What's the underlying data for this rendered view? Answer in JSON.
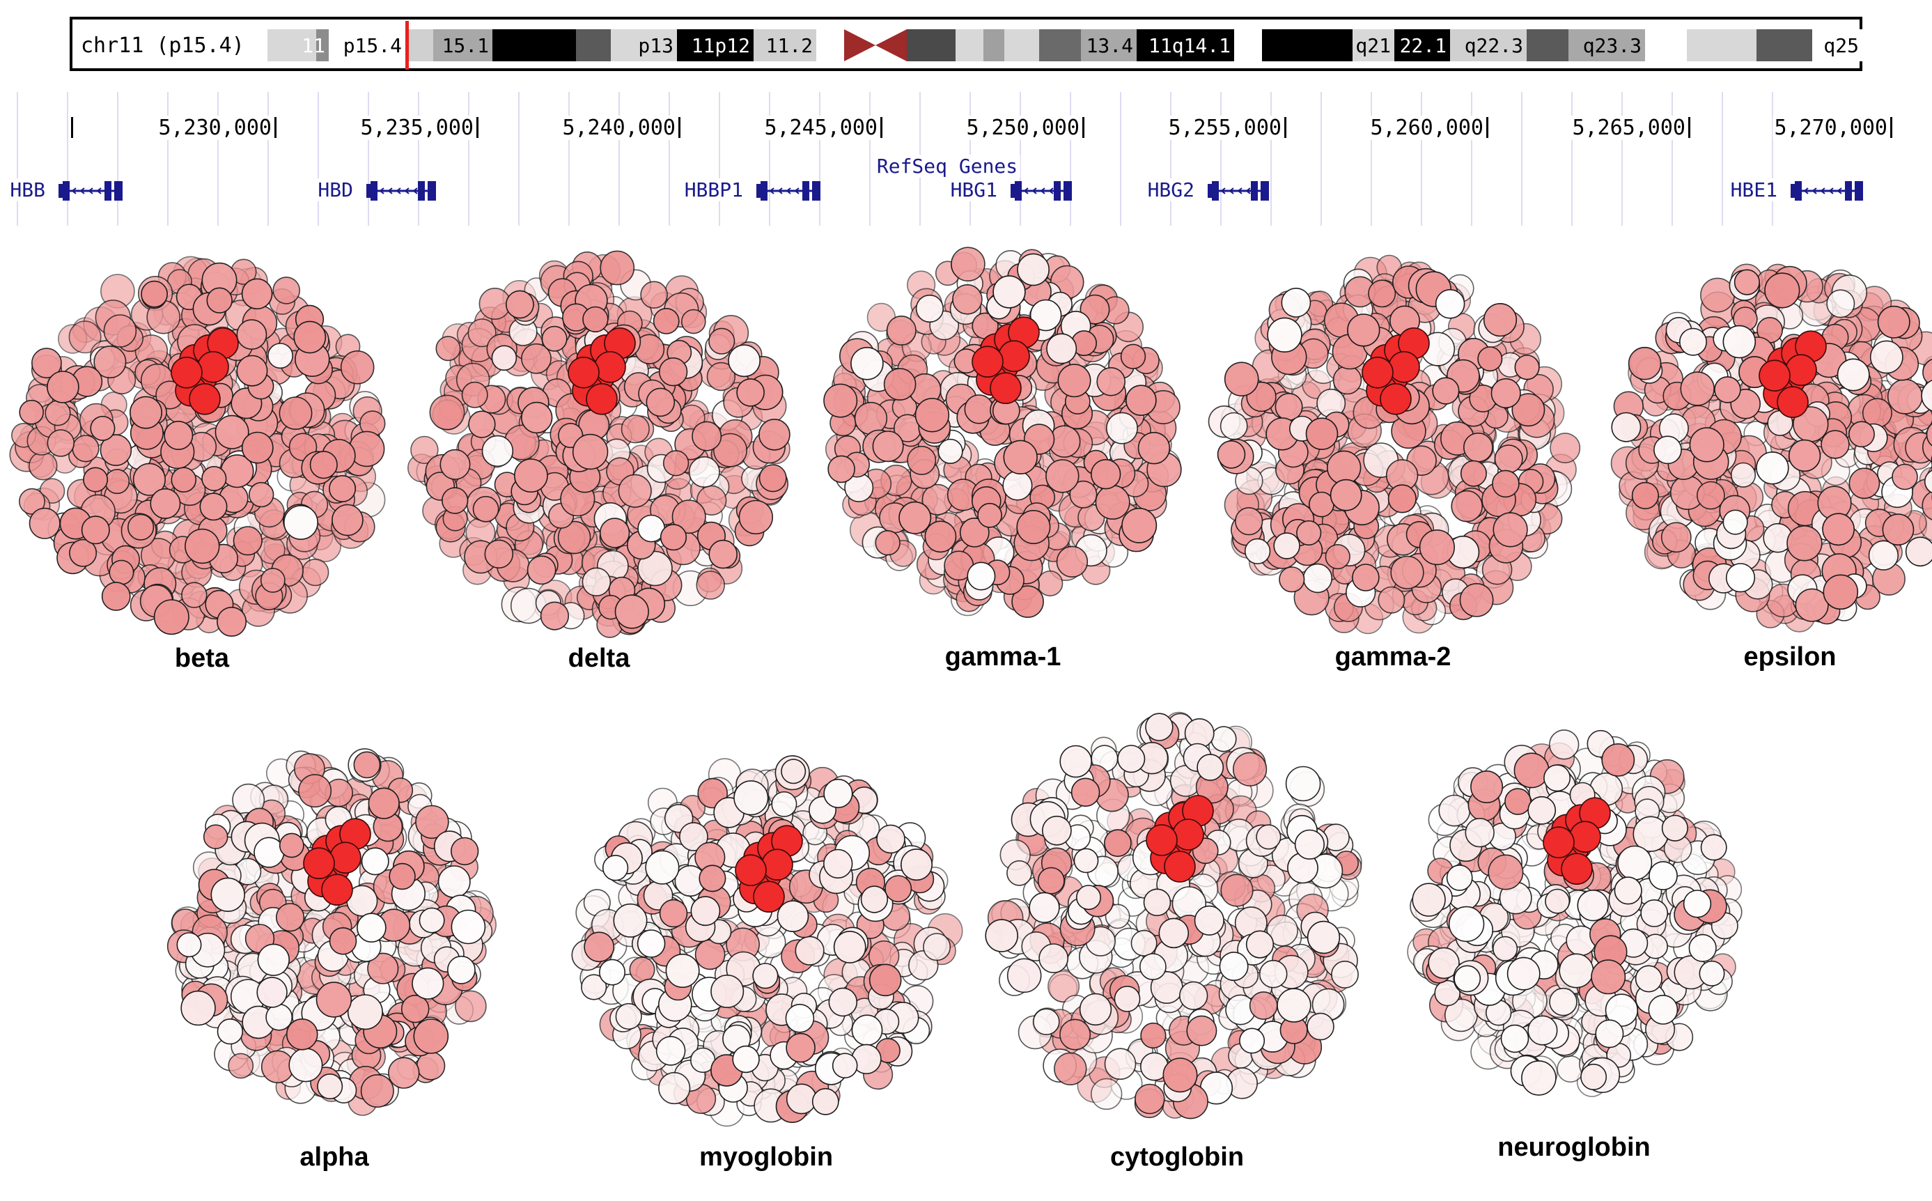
{
  "ideogram": {
    "label": "chr11 (p15.4)",
    "marker_color": "#e8201c",
    "bands": [
      {
        "w": 70,
        "color": "#d8d8d8",
        "label": "",
        "text": "#000"
      },
      {
        "w": 18,
        "color": "#8c8c8c",
        "label": "11",
        "text": "#fff"
      },
      {
        "w": 110,
        "color": "#ffffff",
        "label": "p15.4",
        "text": "#000"
      },
      {
        "w": 40,
        "color": "#d0d0d0",
        "label": "",
        "text": "#000"
      },
      {
        "w": 85,
        "color": "#a8a8a8",
        "label": "15.1",
        "text": "#000"
      },
      {
        "w": 120,
        "color": "#000000",
        "label": "",
        "text": "#fff"
      },
      {
        "w": 50,
        "color": "#5a5a5a",
        "label": "",
        "text": "#fff"
      },
      {
        "w": 95,
        "color": "#d8d8d8",
        "label": "p13",
        "text": "#000"
      },
      {
        "w": 110,
        "color": "#000000",
        "label": "11p12",
        "text": "#fff"
      },
      {
        "w": 90,
        "color": "#d0d0d0",
        "label": "11.2",
        "text": "#000"
      },
      {
        "w": 40,
        "color": "#ffffff",
        "label": "",
        "text": "#000"
      },
      {
        "w": 90,
        "color": "centromere",
        "label": "",
        "text": "#000"
      },
      {
        "w": 70,
        "color": "#4a4a4a",
        "label": "",
        "text": "#fff"
      },
      {
        "w": 40,
        "color": "#d8d8d8",
        "label": "",
        "text": "#000"
      },
      {
        "w": 30,
        "color": "#a0a0a0",
        "label": "",
        "text": "#000"
      },
      {
        "w": 50,
        "color": "#d8d8d8",
        "label": "",
        "text": "#000"
      },
      {
        "w": 60,
        "color": "#6a6a6a",
        "label": "",
        "text": "#fff"
      },
      {
        "w": 80,
        "color": "#a8a8a8",
        "label": "13.4",
        "text": "#000"
      },
      {
        "w": 140,
        "color": "#000000",
        "label": "11q14.1",
        "text": "#fff"
      },
      {
        "w": 40,
        "color": "#ffffff",
        "label": "",
        "text": "#000"
      },
      {
        "w": 130,
        "color": "#000000",
        "label": "",
        "text": "#fff"
      },
      {
        "w": 60,
        "color": "#d8d8d8",
        "label": "q21",
        "text": "#000"
      },
      {
        "w": 80,
        "color": "#000000",
        "label": "22.1",
        "text": "#fff"
      },
      {
        "w": 110,
        "color": "#d0d0d0",
        "label": "q22.3",
        "text": "#000"
      },
      {
        "w": 60,
        "color": "#5a5a5a",
        "label": "",
        "text": "#fff"
      },
      {
        "w": 110,
        "color": "#a8a8a8",
        "label": "q23.3",
        "text": "#000"
      },
      {
        "w": 60,
        "color": "#ffffff",
        "label": "",
        "text": "#000"
      },
      {
        "w": 100,
        "color": "#d8d8d8",
        "label": "",
        "text": "#000"
      },
      {
        "w": 80,
        "color": "#5a5a5a",
        "label": "",
        "text": "#fff"
      },
      {
        "w": 72,
        "color": "#ffffff",
        "label": "q25",
        "text": "#000"
      }
    ]
  },
  "track": {
    "title": "RefSeq Genes",
    "coordinates": [
      "5,230,000",
      "5,235,000",
      "5,240,000",
      "5,245,000",
      "5,250,000",
      "5,255,000",
      "5,260,000",
      "5,265,000",
      "5,270,000"
    ],
    "genes": [
      "HBB",
      "HBD",
      "HBBP1",
      "HBG1",
      "HBG2",
      "HBE1"
    ],
    "gene_color": "#1a1a8c"
  },
  "proteins": [
    {
      "name": "beta",
      "variability": 0.05
    },
    {
      "name": "delta",
      "variability": 0.12
    },
    {
      "name": "gamma-1",
      "variability": 0.22
    },
    {
      "name": "gamma-2",
      "variability": 0.22
    },
    {
      "name": "epsilon",
      "variability": 0.28
    },
    {
      "name": "alpha",
      "variability": 0.55
    },
    {
      "name": "myoglobin",
      "variability": 0.72
    },
    {
      "name": "cytoglobin",
      "variability": 0.68
    },
    {
      "name": "neuroglobin",
      "variability": 0.78
    }
  ],
  "colors": {
    "conserved": "#f0a2a2",
    "heme": "#ef2b2b",
    "variable": "#ffffff"
  }
}
